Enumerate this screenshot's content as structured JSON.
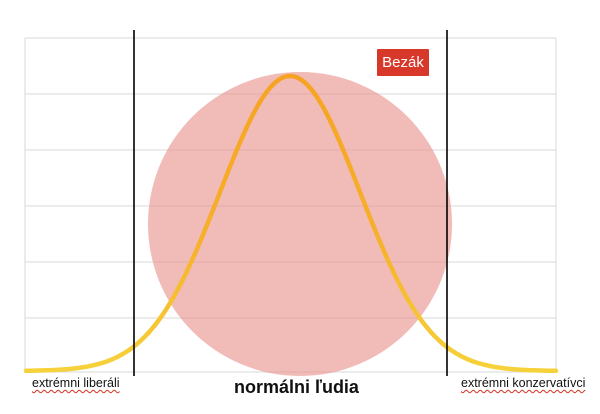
{
  "diagram": {
    "badge": {
      "text": "Bezák",
      "color": "#d8382a"
    },
    "labels": {
      "left": "extrémni liberáli",
      "center": "normálni ľudia",
      "right": "extrémni konzervatívci"
    },
    "colors": {
      "curve": "#f6a323",
      "curve_tail": "#f6d23a",
      "circle": "#e88d88",
      "grid": "#d9d9d9",
      "divider": "#000000"
    },
    "shapes": [
      "bell-curve",
      "circle",
      "divider-lines",
      "grid"
    ]
  }
}
